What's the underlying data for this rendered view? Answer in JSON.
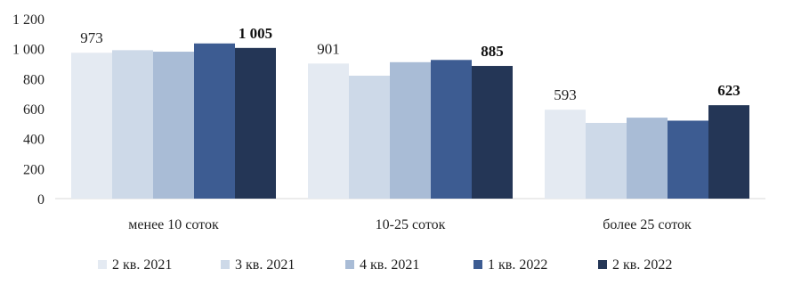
{
  "chart_data": {
    "type": "bar",
    "categories": [
      "менее 10 соток",
      "10-25 соток",
      "более 25 соток"
    ],
    "series": [
      {
        "name": "2 кв. 2021",
        "values": [
          973,
          901,
          593
        ],
        "color": "#e4eaf2"
      },
      {
        "name": "3 кв. 2021",
        "values": [
          990,
          820,
          505
        ],
        "color": "#cdd9e8"
      },
      {
        "name": "4 кв. 2021",
        "values": [
          980,
          910,
          540
        ],
        "color": "#a9bcd6"
      },
      {
        "name": "1 кв. 2022",
        "values": [
          1035,
          925,
          520
        ],
        "color": "#3d5c92"
      },
      {
        "name": "2 кв. 2022",
        "values": [
          1005,
          885,
          623
        ],
        "color": "#243656"
      }
    ],
    "data_labels": [
      {
        "category": 0,
        "series": 0,
        "text": "973",
        "bold": false
      },
      {
        "category": 0,
        "series": 4,
        "text": "1 005",
        "bold": true
      },
      {
        "category": 1,
        "series": 0,
        "text": "901",
        "bold": false
      },
      {
        "category": 1,
        "series": 4,
        "text": "885",
        "bold": true
      },
      {
        "category": 2,
        "series": 0,
        "text": "593",
        "bold": false
      },
      {
        "category": 2,
        "series": 4,
        "text": "623",
        "bold": true
      }
    ],
    "y_ticks": [
      "0",
      "200",
      "400",
      "600",
      "800",
      "1 000",
      "1 200"
    ],
    "ylim": [
      0,
      1200
    ],
    "grid": false,
    "legend_position": "bottom",
    "title": "",
    "xlabel": "",
    "ylabel": ""
  }
}
